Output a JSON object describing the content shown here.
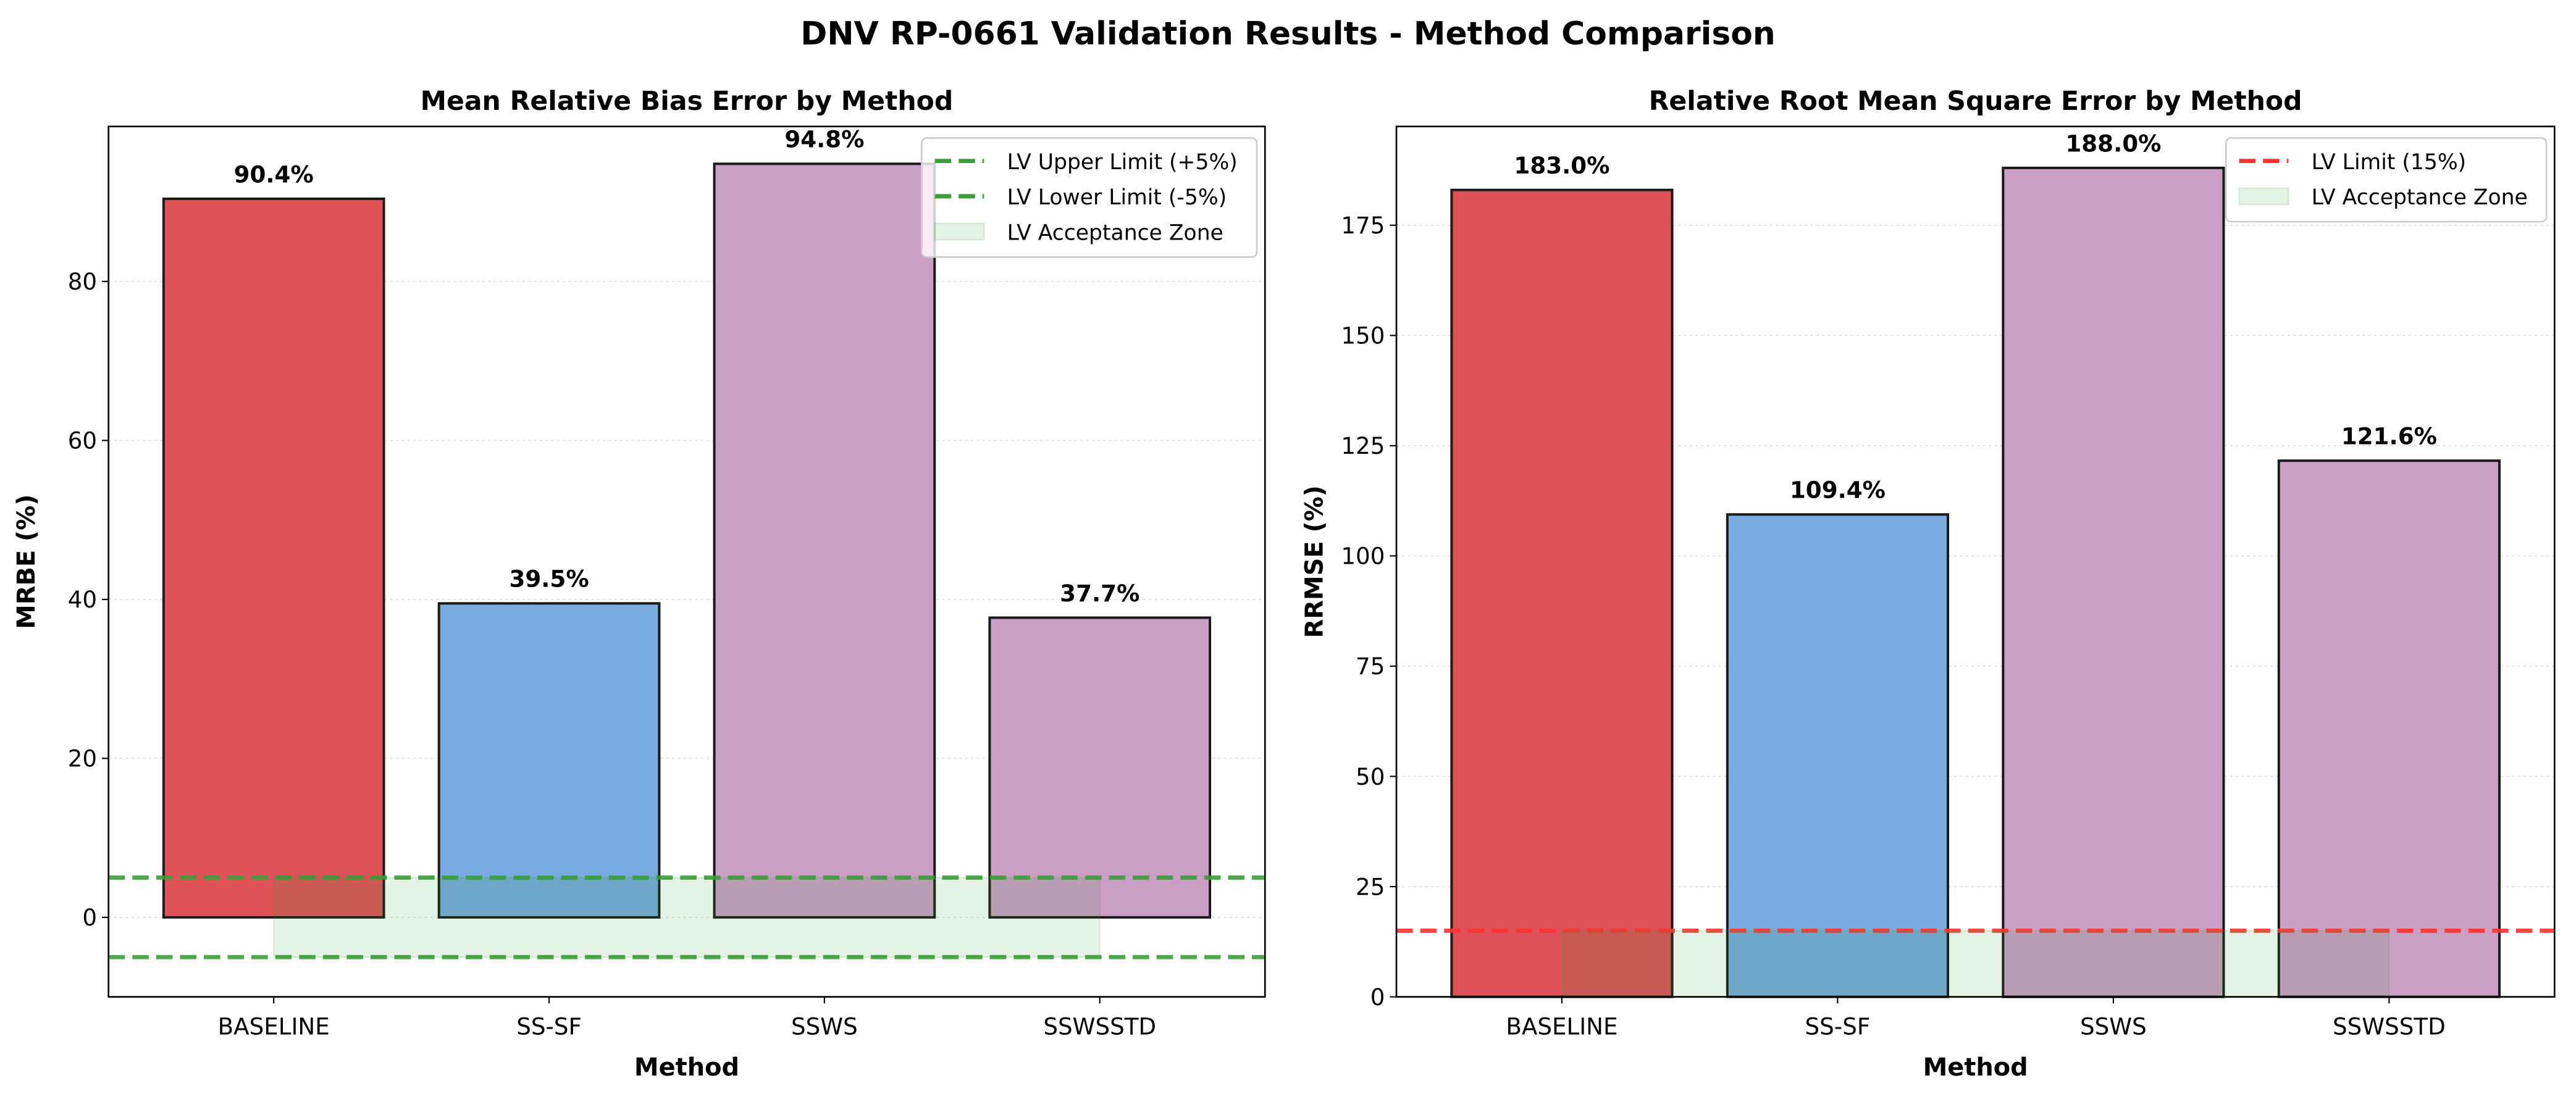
{
  "suptitle": "DNV RP-0661 Validation Results - Method Comparison",
  "chart_data": [
    {
      "type": "bar",
      "title": "Mean Relative Bias Error by Method",
      "xlabel": "Method",
      "ylabel": "MRBE (%)",
      "categories": [
        "BASELINE",
        "SS-SF",
        "SSWS",
        "SSWSSTD"
      ],
      "values": [
        90.4,
        39.5,
        94.8,
        37.7
      ],
      "data_labels": [
        "90.4%",
        "39.5%",
        "94.8%",
        "37.7%"
      ],
      "bar_colors": [
        "#de5157",
        "#77aadf",
        "#cb9fc5",
        "#cb9fc5"
      ],
      "ylim": [
        -10,
        99.5
      ],
      "yticks": [
        0,
        20,
        40,
        60,
        80
      ],
      "grid": true,
      "reference_lines": [
        {
          "label": "LV Upper Limit (+5%)",
          "y": 5,
          "color": "#3a9e3a",
          "style": "dashed"
        },
        {
          "label": "LV Lower Limit (-5%)",
          "y": -5,
          "color": "#3a9e3a",
          "style": "dashed"
        }
      ],
      "zone": {
        "label": "LV Acceptance Zone",
        "y_range": [
          -5,
          5
        ],
        "x_range": [
          0,
          3
        ],
        "color": "#2ca02c"
      },
      "legend": "top-right"
    },
    {
      "type": "bar",
      "title": "Relative Root Mean Square Error by Method",
      "xlabel": "Method",
      "ylabel": "RRMSE (%)",
      "categories": [
        "BASELINE",
        "SS-SF",
        "SSWS",
        "SSWSSTD"
      ],
      "values": [
        183.0,
        109.4,
        188.0,
        121.6
      ],
      "data_labels": [
        "183.0%",
        "109.4%",
        "188.0%",
        "121.6%"
      ],
      "bar_colors": [
        "#de5157",
        "#77aadf",
        "#cb9fc5",
        "#cb9fc5"
      ],
      "ylim": [
        0,
        197.4
      ],
      "yticks": [
        0,
        25,
        50,
        75,
        100,
        125,
        150,
        175
      ],
      "grid": true,
      "reference_lines": [
        {
          "label": "LV Limit (15%)",
          "y": 15,
          "color": "#ff3333",
          "style": "dashed"
        }
      ],
      "zone": {
        "label": "LV Acceptance Zone",
        "y_range": [
          0,
          15
        ],
        "x_range": [
          0,
          3
        ],
        "color": "#2ca02c"
      },
      "legend": "top-right"
    }
  ]
}
